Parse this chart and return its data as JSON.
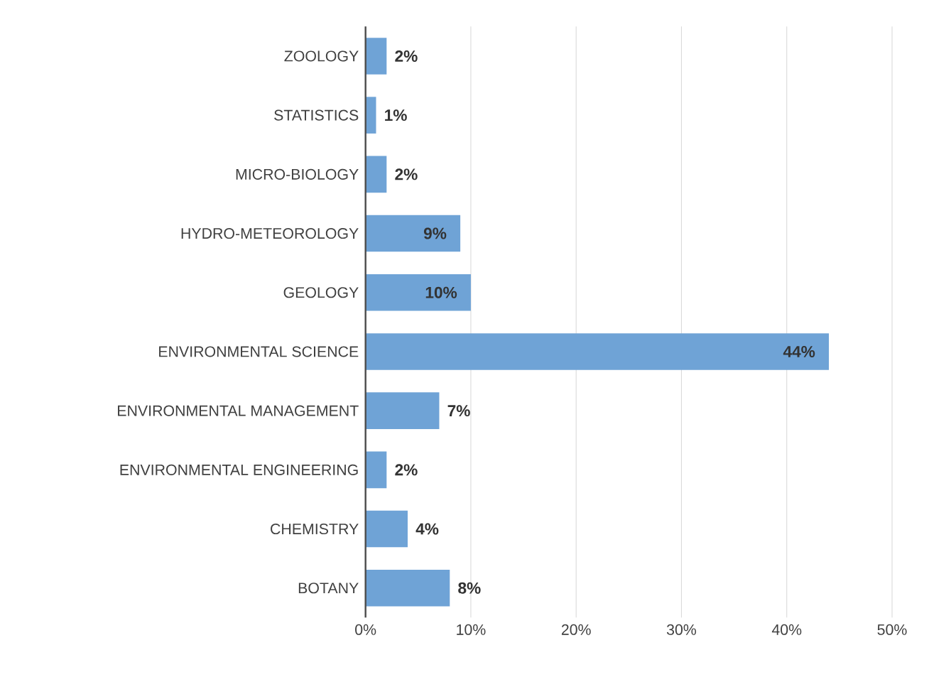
{
  "chart_data": {
    "type": "bar",
    "orientation": "horizontal",
    "categories": [
      "ZOOLOGY",
      "STATISTICS",
      "MICRO-BIOLOGY",
      "HYDRO-METEOROLOGY",
      "GEOLOGY",
      "ENVIRONMENTAL SCIENCE",
      "ENVIRONMENTAL MANAGEMENT",
      "ENVIRONMENTAL ENGINEERING",
      "CHEMISTRY",
      "BOTANY"
    ],
    "values": [
      2,
      1,
      2,
      9,
      10,
      44,
      7,
      2,
      4,
      8
    ],
    "value_labels": [
      "2%",
      "1%",
      "2%",
      "9%",
      "10%",
      "44%",
      "7%",
      "2%",
      "4%",
      "8%"
    ],
    "color": "#6fa3d6",
    "xlim": [
      0,
      50
    ],
    "xticks": [
      {
        "value": 0,
        "label": "0%"
      },
      {
        "value": 10,
        "label": "10%"
      },
      {
        "value": 20,
        "label": "20%"
      },
      {
        "value": 30,
        "label": "30%"
      },
      {
        "value": 40,
        "label": "40%"
      },
      {
        "value": 50,
        "label": "50%"
      }
    ],
    "grid": "x"
  }
}
